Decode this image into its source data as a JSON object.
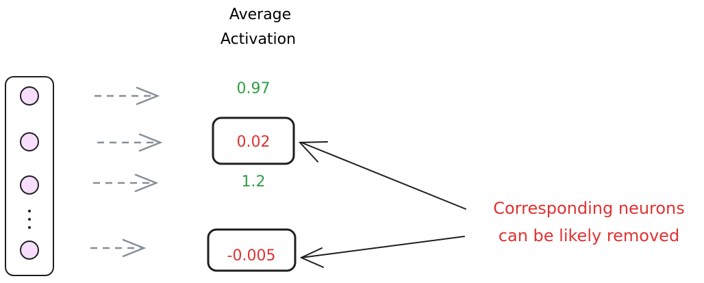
{
  "title": [
    "Average",
    "Activation"
  ],
  "activations": [
    0.97,
    0.02,
    1.2,
    -0.005
  ],
  "annotation": [
    "Corresponding neurons",
    "can be likely removed"
  ]
}
